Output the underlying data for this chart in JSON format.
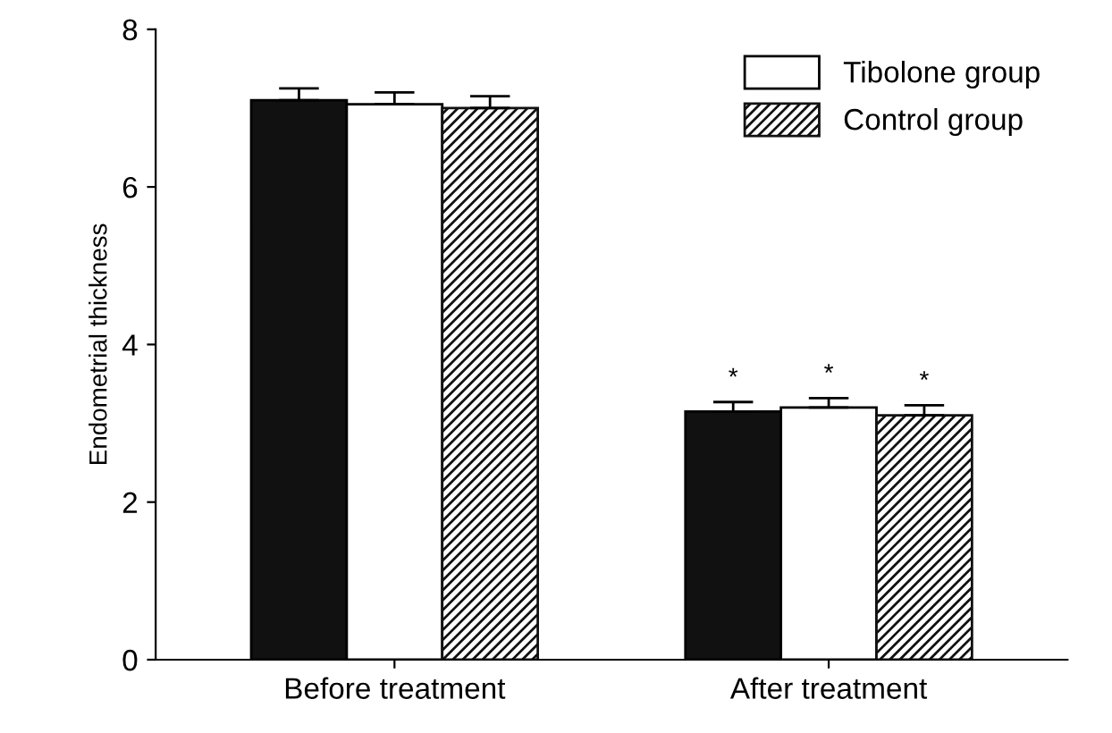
{
  "chart_data": {
    "type": "bar",
    "ylabel": "Endometrial thickness",
    "categories": [
      "Before treatment",
      "After treatment"
    ],
    "series": [
      {
        "color": "#111111",
        "values": [
          7.1,
          3.15
        ],
        "errors": [
          0.15,
          0.12
        ]
      },
      {
        "name": "Tibolone group",
        "color": "#ffffff",
        "values": [
          7.05,
          3.2
        ],
        "errors": [
          0.15,
          0.12
        ]
      },
      {
        "name": "Control group",
        "color": "#111111",
        "values": [
          7.0,
          3.1
        ],
        "errors": [
          0.15,
          0.13
        ]
      }
    ],
    "annotations": [
      "*",
      "*",
      "*"
    ],
    "ylim": [
      0,
      8
    ],
    "yticks": [
      0,
      2,
      4,
      6,
      8
    ],
    "grid": false,
    "legend": "top right"
  }
}
